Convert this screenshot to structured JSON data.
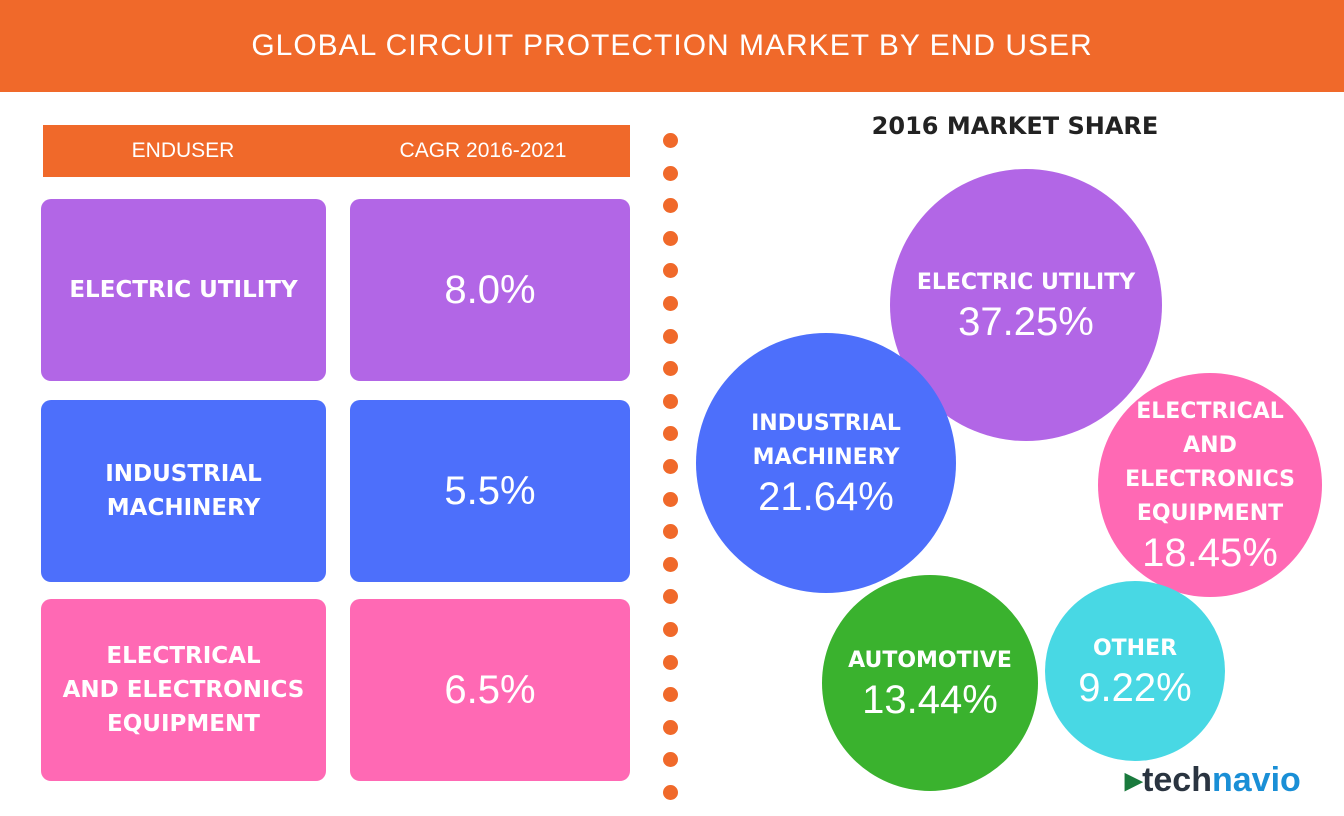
{
  "header": {
    "title": "GLOBAL CIRCUIT PROTECTION MARKET BY END USER"
  },
  "table": {
    "columns": [
      "ENDUSER",
      "CAGR 2016-2021"
    ],
    "rows": [
      {
        "label": [
          "ELECTRIC UTILITY"
        ],
        "cagr": "8.0%"
      },
      {
        "label": [
          "INDUSTRIAL",
          "MACHINERY"
        ],
        "cagr": "5.5%"
      },
      {
        "label": [
          "ELECTRICAL",
          "AND ELECTRONICS",
          "EQUIPMENT"
        ],
        "cagr": "6.5%"
      }
    ]
  },
  "market_share": {
    "title": "2016 MARKET SHARE",
    "bubbles": [
      {
        "label": [
          "ELECTRIC UTILITY"
        ],
        "value": "37.25%"
      },
      {
        "label": [
          "INDUSTRIAL",
          "MACHINERY"
        ],
        "value": "21.64%"
      },
      {
        "label": [
          "ELECTRICAL",
          "AND ELECTRONICS",
          "EQUIPMENT"
        ],
        "value": "18.45%"
      },
      {
        "label": [
          "AUTOMOTIVE"
        ],
        "value": "13.44%"
      },
      {
        "label": [
          "OTHER"
        ],
        "value": "9.22%"
      }
    ]
  },
  "logo": [
    "tech",
    "navio"
  ]
}
